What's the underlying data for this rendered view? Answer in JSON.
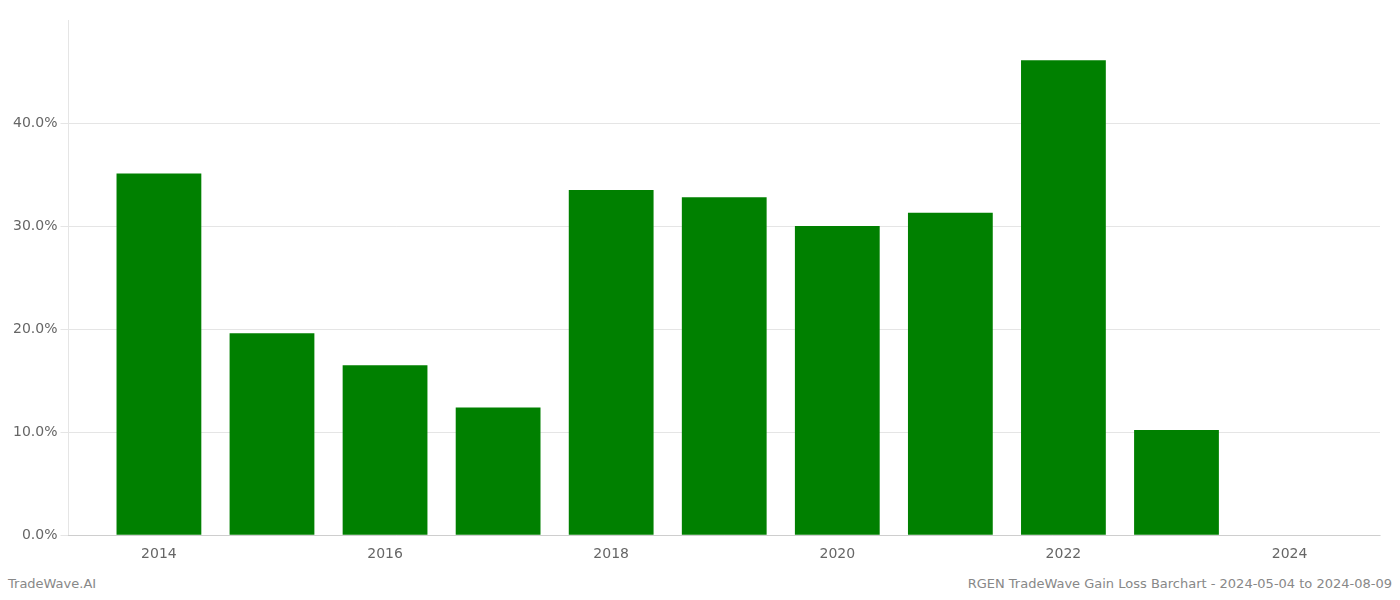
{
  "chart_data": {
    "type": "bar",
    "x": [
      2014,
      2015,
      2016,
      2017,
      2018,
      2019,
      2020,
      2021,
      2022,
      2023
    ],
    "values": [
      0.351,
      0.196,
      0.165,
      0.124,
      0.335,
      0.328,
      0.3,
      0.313,
      0.461,
      0.102
    ],
    "color": "#008000",
    "xlim": [
      2013.2,
      2024.8
    ],
    "xticks": [
      2014,
      2016,
      2018,
      2020,
      2022,
      2024
    ],
    "ylim": [
      0.0,
      0.5
    ],
    "yticks": [
      {
        "value": 0.0,
        "label": "0.0%"
      },
      {
        "value": 0.1,
        "label": "10.0%"
      },
      {
        "value": 0.2,
        "label": "20.0%"
      },
      {
        "value": 0.3,
        "label": "30.0%"
      },
      {
        "value": 0.4,
        "label": "40.0%"
      }
    ],
    "grid": "y",
    "annotations": [
      "TradeWave.AI",
      "RGEN TradeWave Gain Loss Barchart - 2024-05-04 to 2024-08-09"
    ]
  }
}
